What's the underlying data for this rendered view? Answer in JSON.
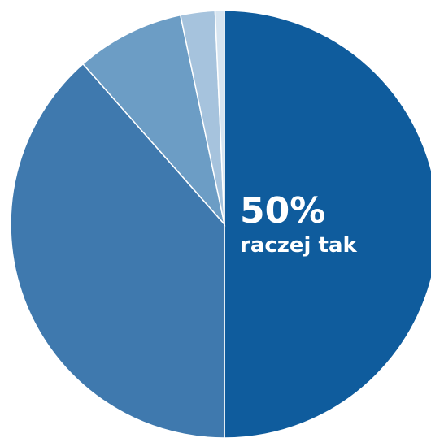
{
  "chart_data": {
    "type": "pie",
    "slices": [
      {
        "value": 50,
        "color": "#0F5C9D"
      },
      {
        "value": 38.5,
        "color": "#3F79AE"
      },
      {
        "value": 8.2,
        "color": "#6C9DC5"
      },
      {
        "value": 2.6,
        "color": "#A6C3DD"
      },
      {
        "value": 0.7,
        "color": "#D6E4F0"
      }
    ],
    "data_labels": [
      {
        "slice": 0,
        "value_text": "50%",
        "text": "raczej tak"
      }
    ]
  }
}
